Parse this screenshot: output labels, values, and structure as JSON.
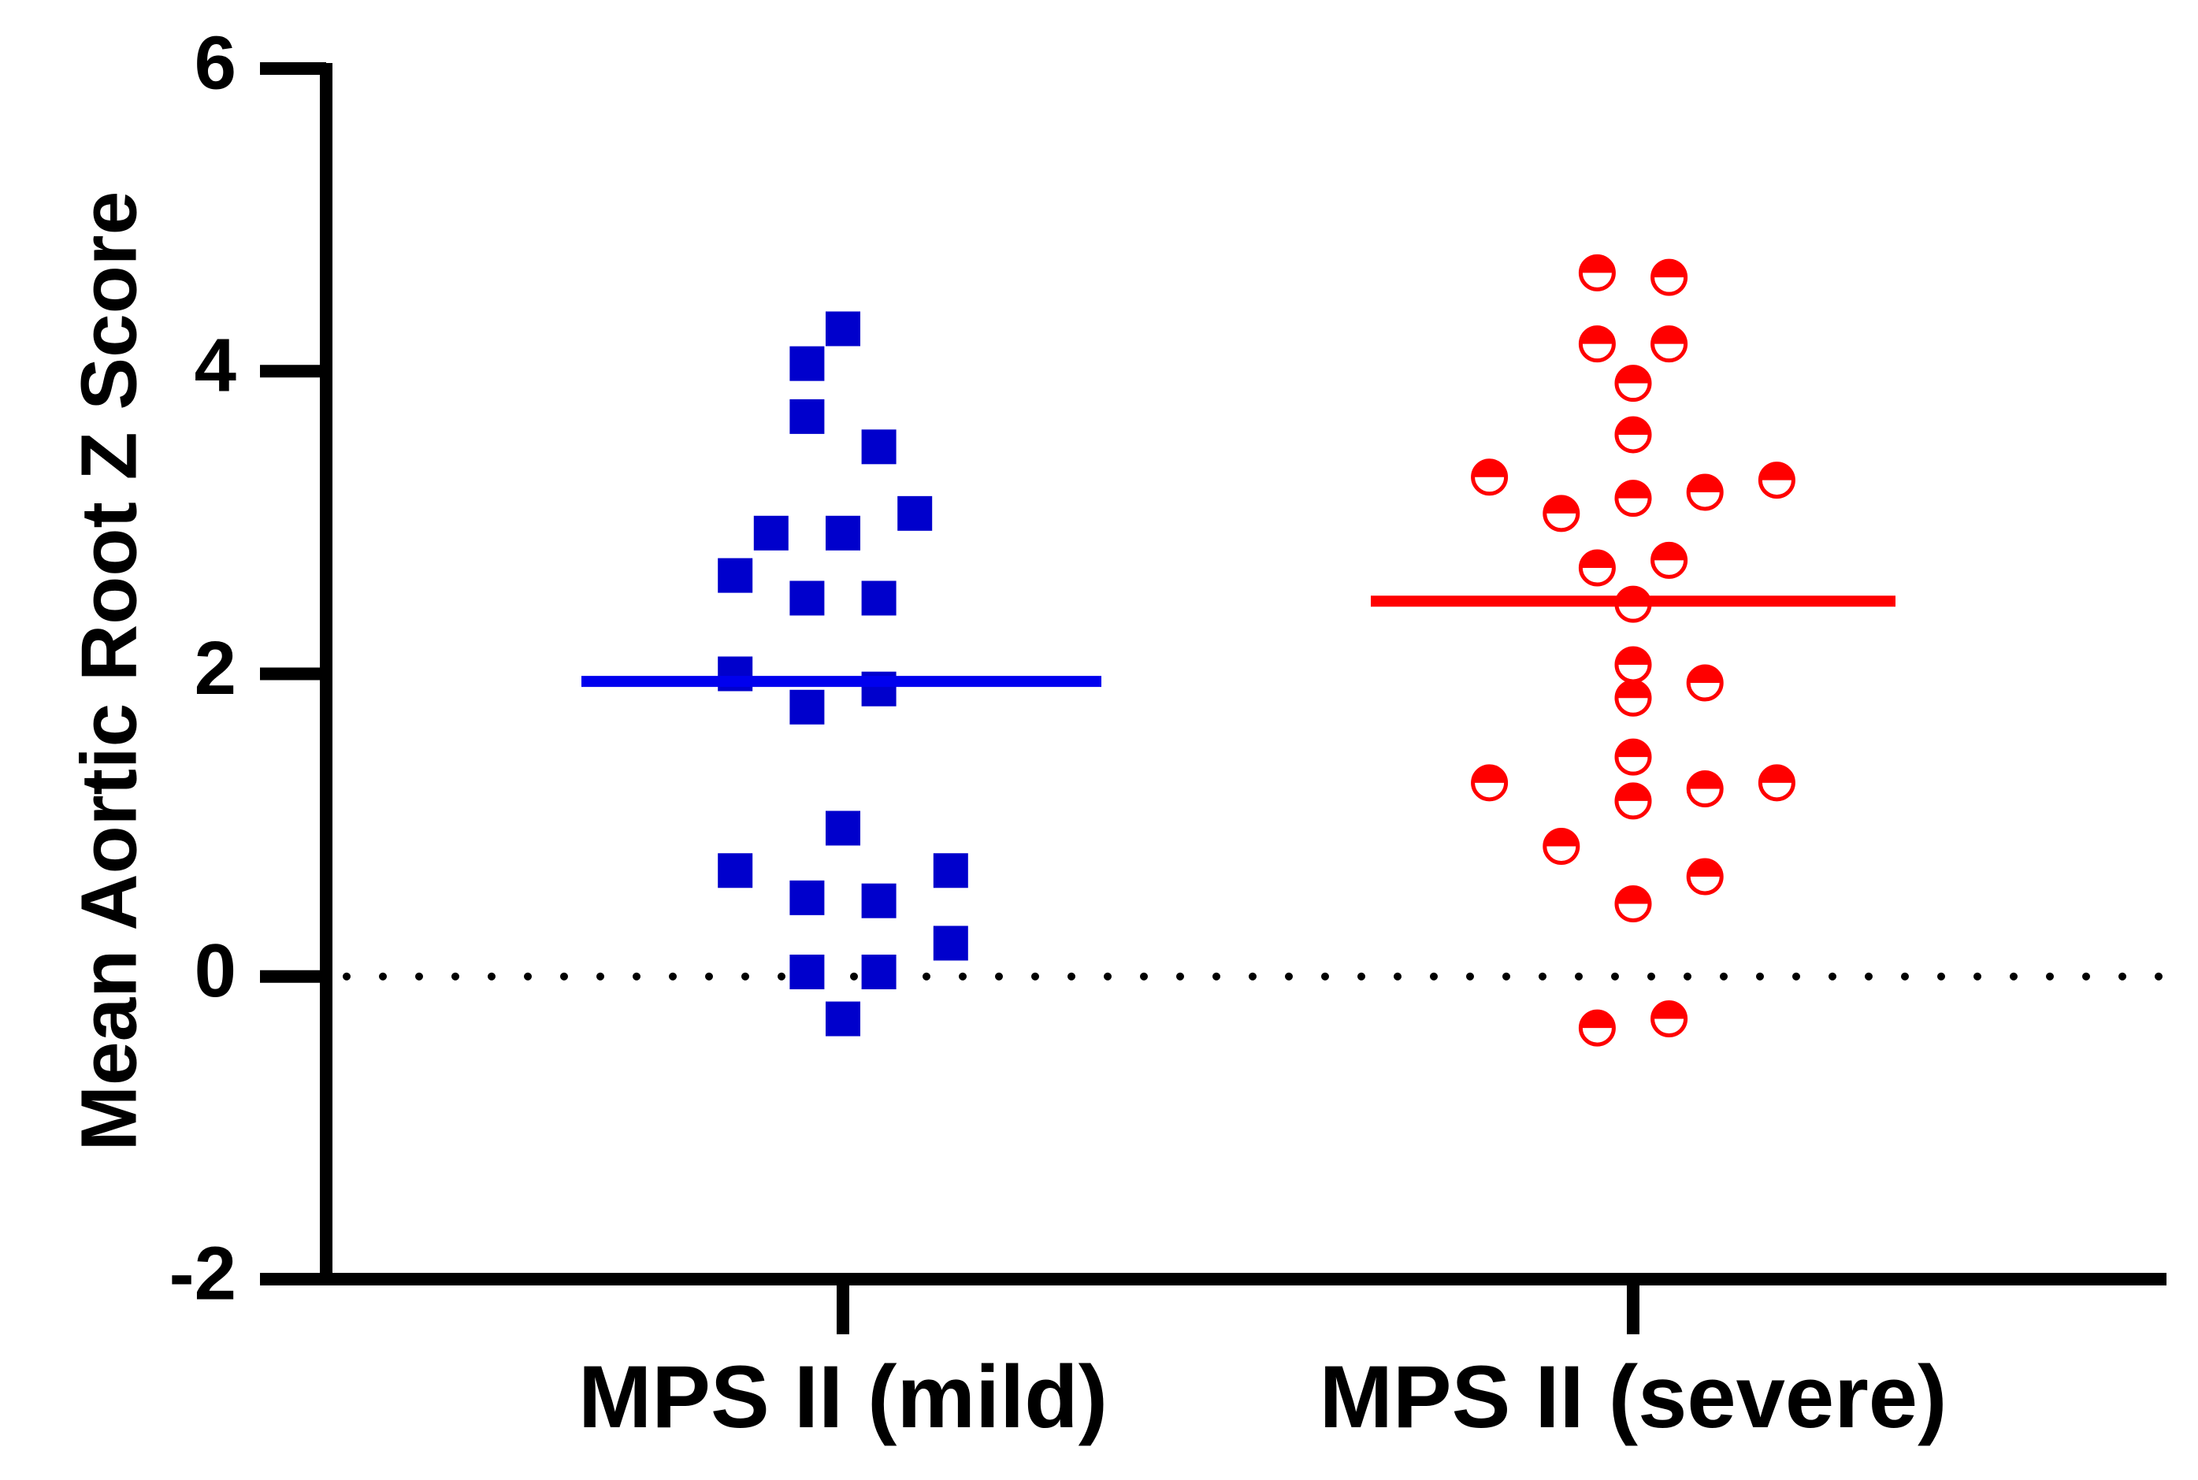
{
  "chart_data": {
    "type": "scatter",
    "ylabel": "Mean Aortic Root Z Score",
    "xlabel": "",
    "ylim": [
      -2,
      6
    ],
    "yticks": [
      -2,
      0,
      2,
      4,
      6
    ],
    "ytick_labels": [
      "-2",
      "0",
      "2",
      "4",
      "6"
    ],
    "reference_line": {
      "y": 0,
      "style": "dotted"
    },
    "categories": [
      "MPS II (mild)",
      "MPS II (severe)"
    ],
    "series": [
      {
        "category": "MPS II (mild)",
        "color": "#0000cc",
        "line_color": "#0000ee",
        "marker": "square",
        "mean": 1.95,
        "points": [
          [
            0.0,
            4.28
          ],
          [
            -0.24,
            4.05
          ],
          [
            -0.24,
            3.7
          ],
          [
            0.24,
            3.5
          ],
          [
            0.48,
            3.06
          ],
          [
            -0.48,
            2.93
          ],
          [
            0.0,
            2.93
          ],
          [
            -0.72,
            2.65
          ],
          [
            -0.24,
            2.5
          ],
          [
            0.24,
            2.5
          ],
          [
            -0.72,
            2.0
          ],
          [
            0.24,
            1.9
          ],
          [
            -0.24,
            1.78
          ],
          [
            0.0,
            0.98
          ],
          [
            -0.72,
            0.7
          ],
          [
            0.72,
            0.7
          ],
          [
            -0.24,
            0.52
          ],
          [
            0.24,
            0.5
          ],
          [
            0.72,
            0.22
          ],
          [
            -0.24,
            0.03
          ],
          [
            0.24,
            0.03
          ],
          [
            0.0,
            -0.28
          ]
        ]
      },
      {
        "category": "MPS II (severe)",
        "color": "#ff0000",
        "line_color": "#ff0000",
        "marker": "half-filled-circle",
        "mean": 2.48,
        "points": [
          [
            -0.24,
            4.65
          ],
          [
            0.24,
            4.62
          ],
          [
            -0.24,
            4.18
          ],
          [
            0.24,
            4.18
          ],
          [
            0.0,
            3.92
          ],
          [
            0.0,
            3.58
          ],
          [
            -0.96,
            3.3
          ],
          [
            0.96,
            3.28
          ],
          [
            0.48,
            3.2
          ],
          [
            0.0,
            3.16
          ],
          [
            -0.48,
            3.06
          ],
          [
            0.24,
            2.75
          ],
          [
            -0.24,
            2.7
          ],
          [
            0.0,
            2.46
          ],
          [
            0.0,
            2.06
          ],
          [
            0.48,
            1.94
          ],
          [
            0.0,
            1.84
          ],
          [
            0.0,
            1.45
          ],
          [
            -0.96,
            1.28
          ],
          [
            0.96,
            1.28
          ],
          [
            0.48,
            1.24
          ],
          [
            0.0,
            1.16
          ],
          [
            -0.48,
            0.86
          ],
          [
            0.48,
            0.66
          ],
          [
            0.0,
            0.48
          ],
          [
            0.24,
            -0.28
          ],
          [
            -0.24,
            -0.34
          ]
        ]
      }
    ]
  }
}
